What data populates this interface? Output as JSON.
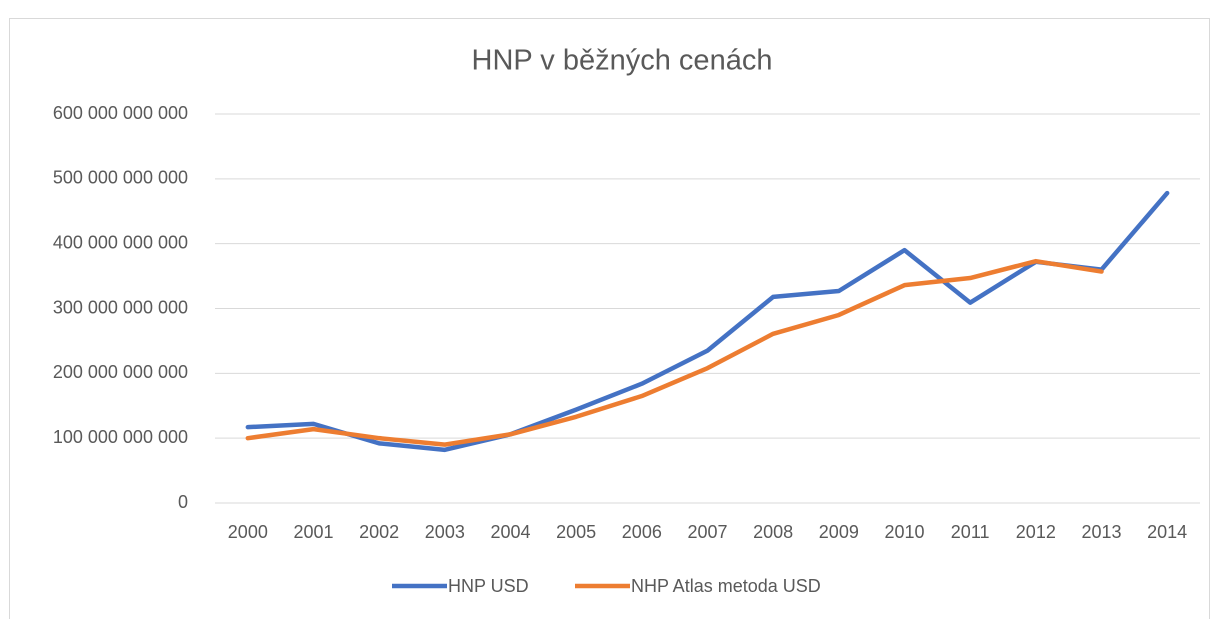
{
  "chart_data": {
    "type": "line",
    "title": "HNP v běžných cenách",
    "categories": [
      "2000",
      "2001",
      "2002",
      "2003",
      "2004",
      "2005",
      "2006",
      "2007",
      "2008",
      "2009",
      "2010",
      "2011",
      "2012",
      "2013",
      "2014"
    ],
    "series": [
      {
        "name": "HNP USD",
        "color": "#4472c4",
        "values": [
          117000000000,
          122000000000,
          92000000000,
          82000000000,
          106000000000,
          144000000000,
          184000000000,
          235000000000,
          318000000000,
          327000000000,
          390000000000,
          309000000000,
          372000000000,
          360000000000,
          478000000000
        ]
      },
      {
        "name": "NHP Atlas metoda USD",
        "color": "#ed7d31",
        "values": [
          100000000000,
          114000000000,
          100000000000,
          90000000000,
          106000000000,
          133000000000,
          165000000000,
          208000000000,
          261000000000,
          290000000000,
          336000000000,
          347000000000,
          373000000000,
          357000000000,
          null
        ]
      }
    ],
    "ylim": [
      0,
      600000000000
    ],
    "yticks": [
      {
        "value": 0,
        "label": "0"
      },
      {
        "value": 100000000000,
        "label": "100 000 000 000"
      },
      {
        "value": 200000000000,
        "label": "200 000 000 000"
      },
      {
        "value": 300000000000,
        "label": "300 000 000 000"
      },
      {
        "value": 400000000000,
        "label": "400 000 000 000"
      },
      {
        "value": 500000000000,
        "label": "500 000 000 000"
      },
      {
        "value": 600000000000,
        "label": "600 000 000 000"
      }
    ],
    "grid": true,
    "legend": "bottom"
  }
}
